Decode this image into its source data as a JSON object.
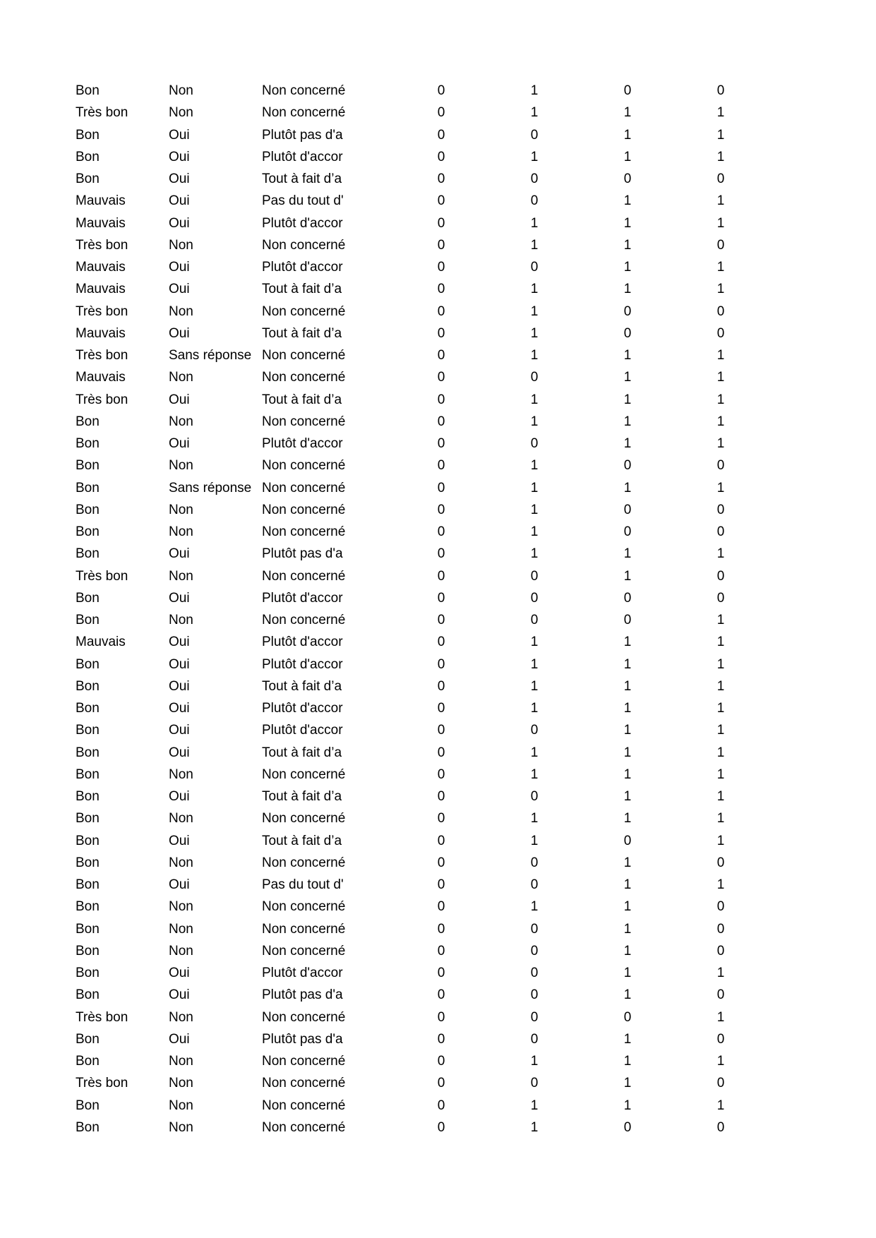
{
  "rows": [
    [
      "Bon",
      "Non",
      "Non concerné",
      "0",
      "1",
      "0",
      "0"
    ],
    [
      "Très bon",
      "Non",
      "Non concerné",
      "0",
      "1",
      "1",
      "1"
    ],
    [
      "Bon",
      "Oui",
      "Plutôt pas d'a",
      "0",
      "0",
      "1",
      "1"
    ],
    [
      "Bon",
      "Oui",
      "Plutôt d'accor",
      "0",
      "1",
      "1",
      "1"
    ],
    [
      "Bon",
      "Oui",
      "Tout à fait d’a",
      "0",
      "0",
      "0",
      "0"
    ],
    [
      "Mauvais",
      "Oui",
      "Pas du tout d'",
      "0",
      "0",
      "1",
      "1"
    ],
    [
      "Mauvais",
      "Oui",
      "Plutôt d'accor",
      "0",
      "1",
      "1",
      "1"
    ],
    [
      "Très bon",
      "Non",
      "Non concerné",
      "0",
      "1",
      "1",
      "0"
    ],
    [
      "Mauvais",
      "Oui",
      "Plutôt d'accor",
      "0",
      "0",
      "1",
      "1"
    ],
    [
      "Mauvais",
      "Oui",
      "Tout à fait d’a",
      "0",
      "1",
      "1",
      "1"
    ],
    [
      "Très bon",
      "Non",
      "Non concerné",
      "0",
      "1",
      "0",
      "0"
    ],
    [
      "Mauvais",
      "Oui",
      "Tout à fait d’a",
      "0",
      "1",
      "0",
      "0"
    ],
    [
      "Très bon",
      "Sans réponse",
      "Non concerné",
      "0",
      "1",
      "1",
      "1"
    ],
    [
      "Mauvais",
      "Non",
      "Non concerné",
      "0",
      "0",
      "1",
      "1"
    ],
    [
      "Très bon",
      "Oui",
      "Tout à fait d’a",
      "0",
      "1",
      "1",
      "1"
    ],
    [
      "Bon",
      "Non",
      "Non concerné",
      "0",
      "1",
      "1",
      "1"
    ],
    [
      "Bon",
      "Oui",
      "Plutôt d'accor",
      "0",
      "0",
      "1",
      "1"
    ],
    [
      "Bon",
      "Non",
      "Non concerné",
      "0",
      "1",
      "0",
      "0"
    ],
    [
      "Bon",
      "Sans réponse",
      "Non concerné",
      "0",
      "1",
      "1",
      "1"
    ],
    [
      "Bon",
      "Non",
      "Non concerné",
      "0",
      "1",
      "0",
      "0"
    ],
    [
      "Bon",
      "Non",
      "Non concerné",
      "0",
      "1",
      "0",
      "0"
    ],
    [
      "Bon",
      "Oui",
      "Plutôt pas d'a",
      "0",
      "1",
      "1",
      "1"
    ],
    [
      "Très bon",
      "Non",
      "Non concerné",
      "0",
      "0",
      "1",
      "0"
    ],
    [
      "Bon",
      "Oui",
      "Plutôt d'accor",
      "0",
      "0",
      "0",
      "0"
    ],
    [
      "Bon",
      "Non",
      "Non concerné",
      "0",
      "0",
      "0",
      "1"
    ],
    [
      "Mauvais",
      "Oui",
      "Plutôt d'accor",
      "0",
      "1",
      "1",
      "1"
    ],
    [
      "Bon",
      "Oui",
      "Plutôt d'accor",
      "0",
      "1",
      "1",
      "1"
    ],
    [
      "Bon",
      "Oui",
      "Tout à fait d’a",
      "0",
      "1",
      "1",
      "1"
    ],
    [
      "Bon",
      "Oui",
      "Plutôt d'accor",
      "0",
      "1",
      "1",
      "1"
    ],
    [
      "Bon",
      "Oui",
      "Plutôt d'accor",
      "0",
      "0",
      "1",
      "1"
    ],
    [
      "Bon",
      "Oui",
      "Tout à fait d’a",
      "0",
      "1",
      "1",
      "1"
    ],
    [
      "Bon",
      "Non",
      "Non concerné",
      "0",
      "1",
      "1",
      "1"
    ],
    [
      "Bon",
      "Oui",
      "Tout à fait d’a",
      "0",
      "0",
      "1",
      "1"
    ],
    [
      "Bon",
      "Non",
      "Non concerné",
      "0",
      "1",
      "1",
      "1"
    ],
    [
      "Bon",
      "Oui",
      "Tout à fait d’a",
      "0",
      "1",
      "0",
      "1"
    ],
    [
      "Bon",
      "Non",
      "Non concerné",
      "0",
      "0",
      "1",
      "0"
    ],
    [
      "Bon",
      "Oui",
      "Pas du tout d'",
      "0",
      "0",
      "1",
      "1"
    ],
    [
      "Bon",
      "Non",
      "Non concerné",
      "0",
      "1",
      "1",
      "0"
    ],
    [
      "Bon",
      "Non",
      "Non concerné",
      "0",
      "0",
      "1",
      "0"
    ],
    [
      "Bon",
      "Non",
      "Non concerné",
      "0",
      "0",
      "1",
      "0"
    ],
    [
      "Bon",
      "Oui",
      "Plutôt d'accor",
      "0",
      "0",
      "1",
      "1"
    ],
    [
      "Bon",
      "Oui",
      "Plutôt pas d'a",
      "0",
      "0",
      "1",
      "0"
    ],
    [
      "Très bon",
      "Non",
      "Non concerné",
      "0",
      "0",
      "0",
      "1"
    ],
    [
      "Bon",
      "Oui",
      "Plutôt pas d'a",
      "0",
      "0",
      "1",
      "0"
    ],
    [
      "Bon",
      "Non",
      "Non concerné",
      "0",
      "1",
      "1",
      "1"
    ],
    [
      "Très bon",
      "Non",
      "Non concerné",
      "0",
      "0",
      "1",
      "0"
    ],
    [
      "Bon",
      "Non",
      "Non concerné",
      "0",
      "1",
      "1",
      "1"
    ],
    [
      "Bon",
      "Non",
      "Non concerné",
      "0",
      "1",
      "0",
      "0"
    ]
  ]
}
